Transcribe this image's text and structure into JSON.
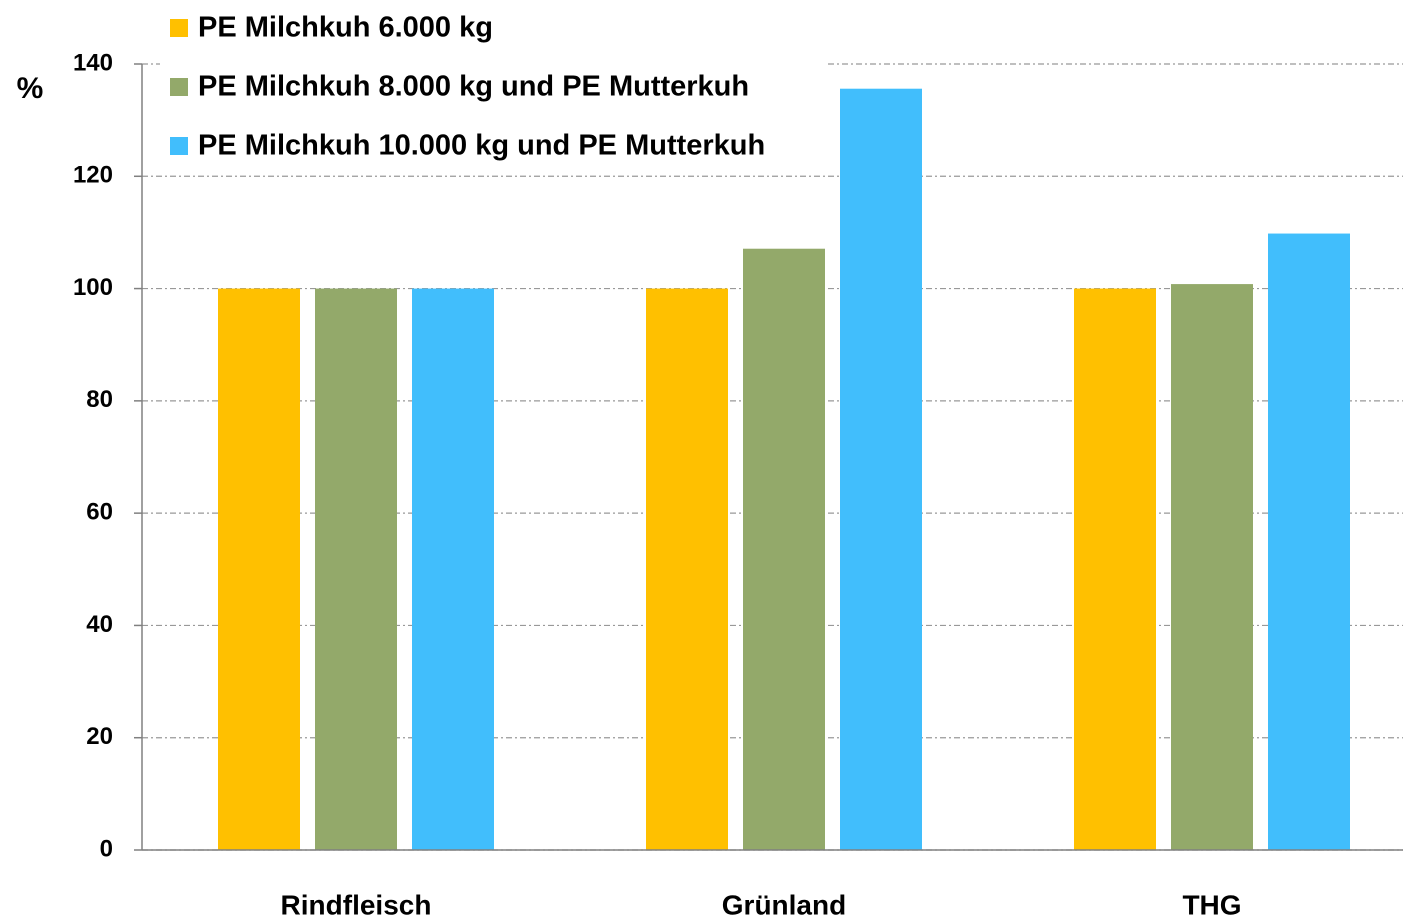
{
  "chart_data": {
    "type": "bar",
    "y_label": "%",
    "categories": [
      "Rindfleisch",
      "Grünland",
      "THG"
    ],
    "series": [
      {
        "name": "PE Milchkuh 6.000 kg",
        "color": "#FFC000",
        "values": [
          100,
          100,
          100
        ]
      },
      {
        "name": "PE Milchkuh 8.000 kg und PE Mutterkuh",
        "color": "#93A96A",
        "values": [
          100,
          107.1,
          100.8
        ]
      },
      {
        "name": "PE Milchkuh 10.000 kg und PE Mutterkuh",
        "color": "#41BEFC",
        "values": [
          100,
          135.6,
          109.8
        ]
      }
    ],
    "ylim": [
      0,
      140
    ],
    "yticks": [
      0,
      20,
      40,
      60,
      80,
      100,
      120,
      140
    ],
    "grid": true,
    "legend": "top-left"
  }
}
